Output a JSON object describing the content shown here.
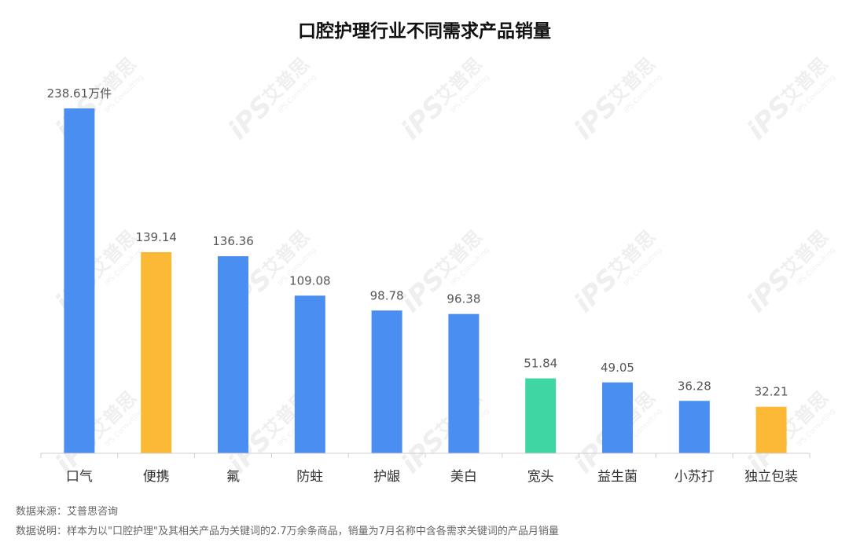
{
  "chart_data": {
    "type": "bar",
    "title": "口腔护理行业不同需求产品销量",
    "categories": [
      "口气",
      "便携",
      "氟",
      "防蛀",
      "护龈",
      "美白",
      "宽头",
      "益生菌",
      "小苏打",
      "独立包装"
    ],
    "values": [
      238.61,
      139.14,
      136.36,
      109.08,
      98.78,
      96.38,
      51.84,
      49.05,
      36.28,
      32.21
    ],
    "value_labels": [
      "238.61万件",
      "139.14",
      "136.36",
      "109.08",
      "98.78",
      "96.38",
      "51.84",
      "49.05",
      "36.28",
      "32.21"
    ],
    "bar_colors": [
      "#4a8ef1",
      "#fcb935",
      "#4a8ef1",
      "#4a8ef1",
      "#4a8ef1",
      "#4a8ef1",
      "#3fd6a3",
      "#4a8ef1",
      "#4a8ef1",
      "#fcb935"
    ],
    "ylim": [
      0,
      240
    ],
    "xlabel": "",
    "ylabel": "",
    "grid": false,
    "legend": "none"
  },
  "footnotes": {
    "source": "数据来源：艾普思咨询",
    "note": "数据说明：样本为以\"口腔护理\"及其相关产品为关键词的2.7万余条商品，销量为7月名称中含各需求关键词的产品月销量"
  },
  "watermark": {
    "brand": "艾普思",
    "logo": "iPS",
    "tagline": "IPS Consulting"
  }
}
